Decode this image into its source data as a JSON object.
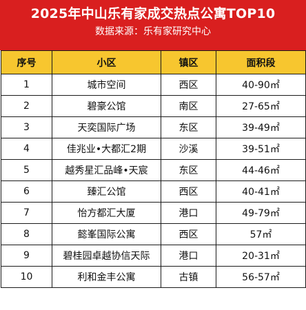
{
  "header": {
    "title": "2025年中山乐有家成交热点公寓TOP10",
    "subtitle": "数据来源：乐有家研究中心"
  },
  "table": {
    "columns": [
      "序号",
      "小区",
      "镇区",
      "面积段"
    ],
    "rows": [
      {
        "rank": "1",
        "community": "城市空间",
        "district": "西区",
        "area": "40-90㎡"
      },
      {
        "rank": "2",
        "community": "碧豪公馆",
        "district": "南区",
        "area": "27-65㎡"
      },
      {
        "rank": "3",
        "community": "天奕国际广场",
        "district": "东区",
        "area": "39-49㎡"
      },
      {
        "rank": "4",
        "community": "佳兆业•大都汇2期",
        "district": "沙溪",
        "area": "39-51㎡"
      },
      {
        "rank": "5",
        "community": "越秀星汇品峰•天宸",
        "district": "东区",
        "area": "44-46㎡"
      },
      {
        "rank": "6",
        "community": "臻汇公馆",
        "district": "西区",
        "area": "40-41㎡"
      },
      {
        "rank": "7",
        "community": "怡方都汇大厦",
        "district": "港口",
        "area": "49-79㎡"
      },
      {
        "rank": "8",
        "community": "懿峯国际公寓",
        "district": "西区",
        "area": "57㎡"
      },
      {
        "rank": "9",
        "community": "碧桂园卓越协信天际",
        "district": "港口",
        "area": "20-31㎡"
      },
      {
        "rank": "10",
        "community": "利和金丰公寓",
        "district": "古镇",
        "area": "56-57㎡"
      }
    ]
  },
  "colors": {
    "header_bg": "#d91f1f",
    "table_header_bg": "#f7c62f",
    "border": "#1a1a1a"
  }
}
